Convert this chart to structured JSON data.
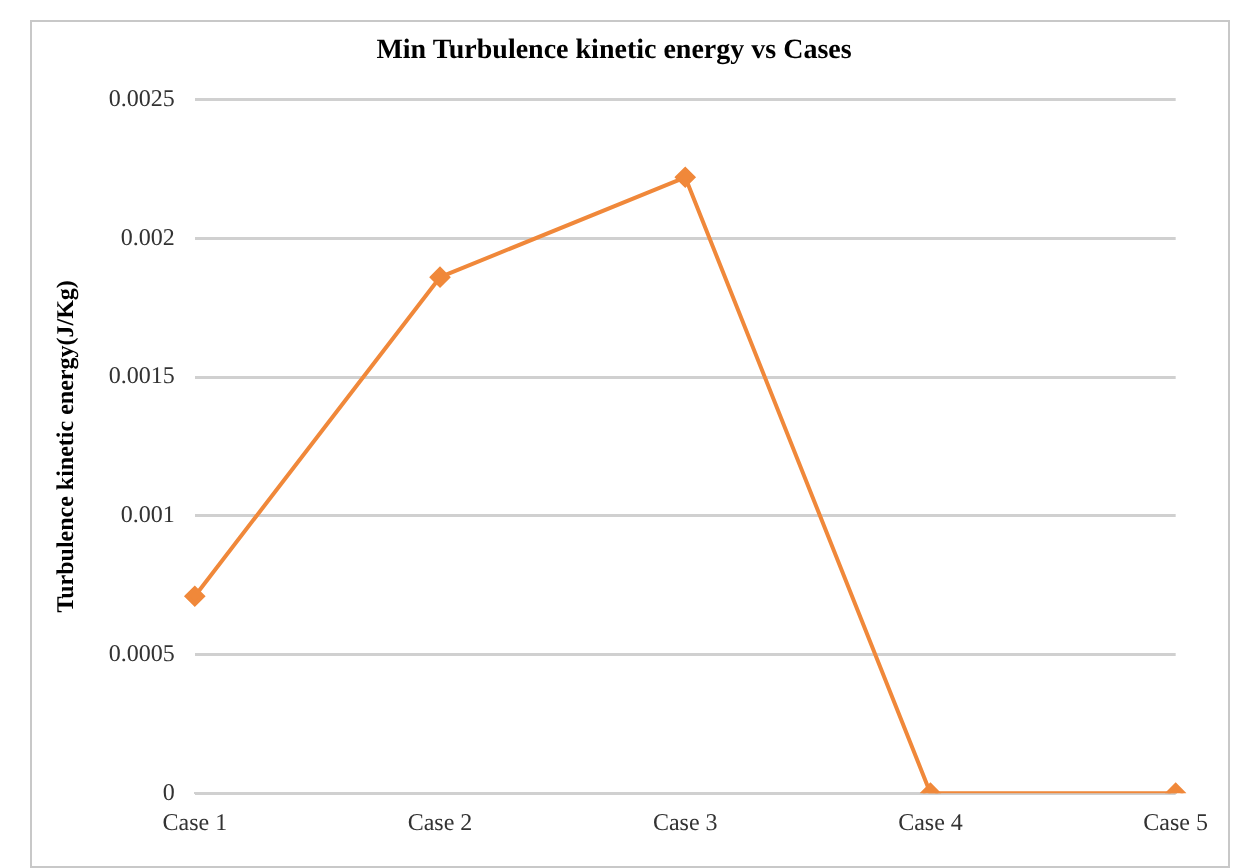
{
  "chart_data": {
    "type": "line",
    "title": "Min Turbulence kinetic energy vs Cases",
    "ylabel": "Turbulence kinetic energy(J/Kg)",
    "categories": [
      "Case 1",
      "Case 2",
      "Case 3",
      "Case 4",
      "Case 5"
    ],
    "series": [
      {
        "color": "#f0883a",
        "values": [
          0.00071,
          0.00186,
          0.00222,
          0,
          0
        ]
      }
    ],
    "ylim": [
      0,
      0.0025
    ],
    "yticks": [
      0,
      0.0005,
      0.001,
      0.0015,
      0.002,
      0.0025
    ],
    "grid": "y",
    "marker": "diamond",
    "line_style": "solid",
    "legend": false
  }
}
